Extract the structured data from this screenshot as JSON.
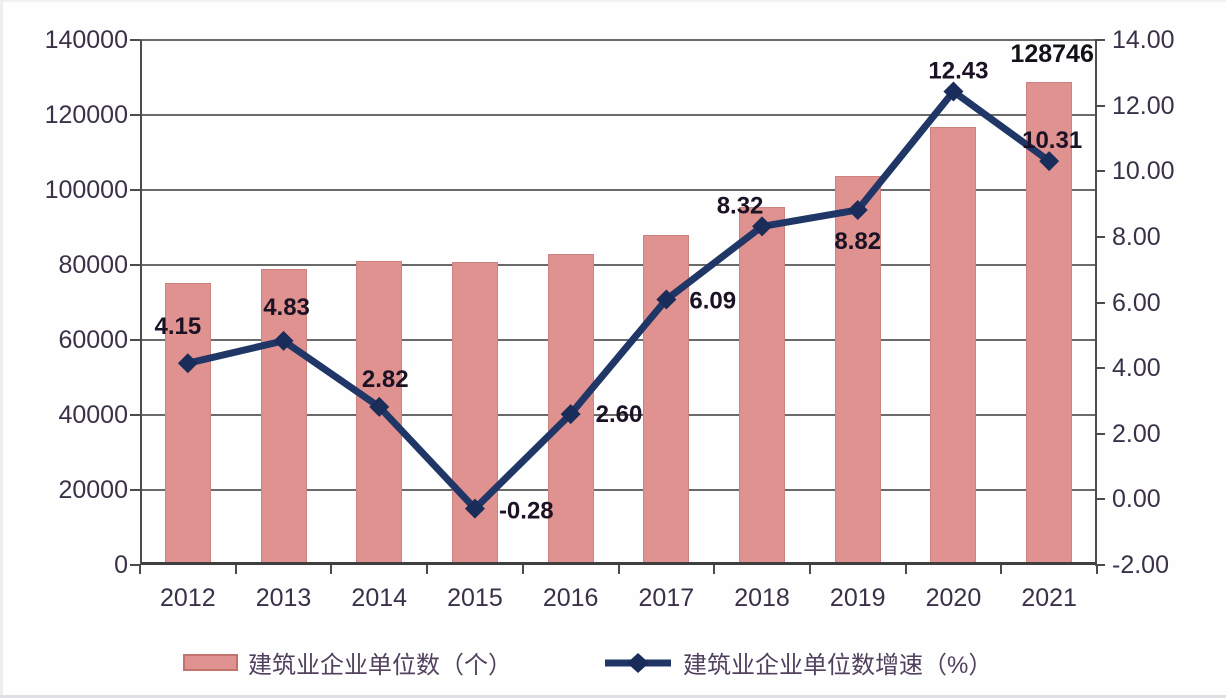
{
  "chart_data": {
    "type": "combo-bar-line",
    "title": "",
    "categories": [
      "2012",
      "2013",
      "2014",
      "2015",
      "2016",
      "2017",
      "2018",
      "2019",
      "2020",
      "2021"
    ],
    "series": [
      {
        "name": "建筑业企业单位数（个）",
        "type": "bar",
        "axis": "left",
        "color": "#df928f",
        "values": [
          75300,
          78900,
          81100,
          80900,
          83000,
          88100,
          95400,
          103800,
          116700,
          128746
        ]
      },
      {
        "name": "建筑业企业单位数增速（%）",
        "type": "line",
        "axis": "right",
        "color": "#1f3666",
        "values": [
          4.15,
          4.83,
          2.82,
          -0.28,
          2.6,
          6.09,
          8.32,
          8.82,
          12.43,
          10.31
        ]
      }
    ],
    "point_labels": [
      "4.15",
      "4.83",
      "2.82",
      "-0.28",
      "2.60",
      "6.09",
      "8.32",
      "8.82",
      "12.43",
      "10.31"
    ],
    "bar_value_label": {
      "category": "2021",
      "text": "128746"
    },
    "left_axis": {
      "min": 0,
      "max": 140000,
      "step": 20000,
      "tick_labels": [
        "0",
        "20000",
        "40000",
        "60000",
        "80000",
        "100000",
        "120000",
        "140000"
      ]
    },
    "right_axis": {
      "min": -2,
      "max": 14,
      "step": 2,
      "tick_labels": [
        "-2.00",
        "0.00",
        "2.00",
        "4.00",
        "6.00",
        "8.00",
        "10.00",
        "12.00",
        "14.00"
      ]
    },
    "grid": "horizontal",
    "legend_position": "bottom"
  }
}
